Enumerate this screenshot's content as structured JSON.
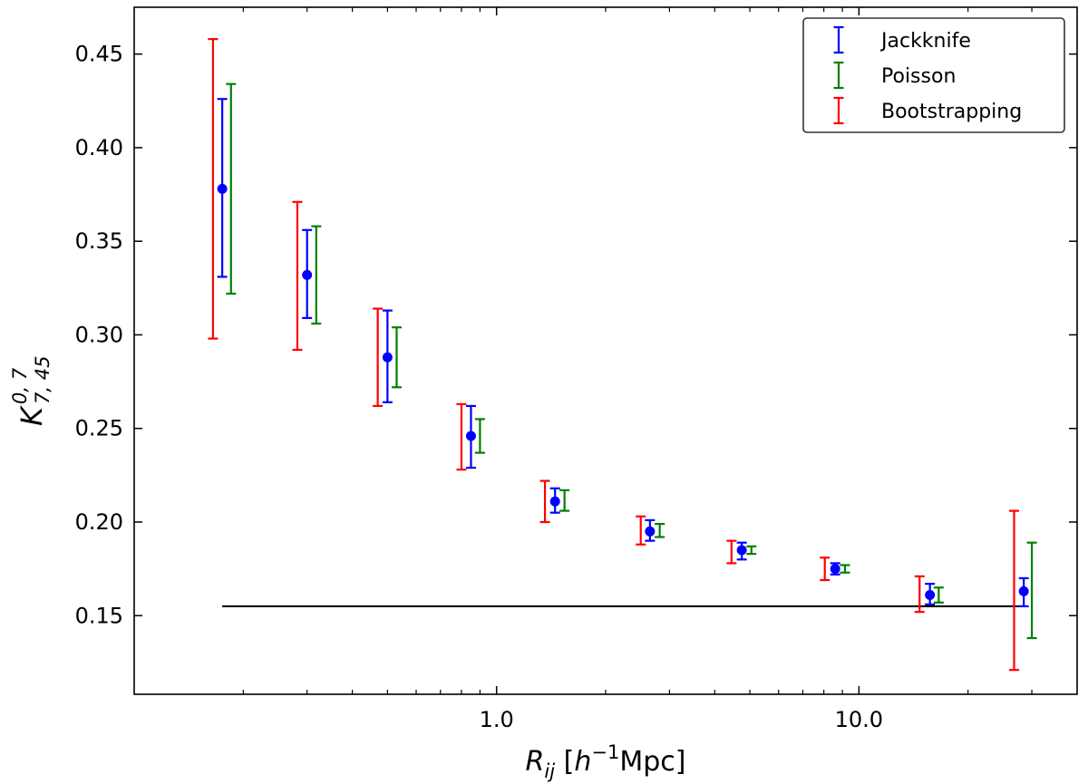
{
  "chart_data": {
    "type": "scatter",
    "xscale": "log",
    "xlim": [
      0.1,
      40
    ],
    "ylim": [
      0.108,
      0.475
    ],
    "xticks": [
      1.0,
      10.0
    ],
    "xtick_labels": [
      "1.0",
      "10.0"
    ],
    "yticks": [
      0.15,
      0.2,
      0.25,
      0.3,
      0.35,
      0.4,
      0.45
    ],
    "ytick_labels": [
      "0.15",
      "0.20",
      "0.25",
      "0.30",
      "0.35",
      "0.40",
      "0.45"
    ],
    "xlabel": {
      "main": "R",
      "sub": "ij",
      "open": " [",
      "h": "h",
      "exp": "−1",
      "unit": "Mpc]"
    },
    "ylabel": {
      "main": "K",
      "sub": "7, 45",
      "sup": "0, 7"
    },
    "series": [
      {
        "name": "Jackknife",
        "color": "#0000ff",
        "marker": true,
        "x": [
          0.175,
          0.3,
          0.5,
          0.85,
          1.45,
          2.65,
          4.75,
          8.6,
          15.7,
          28.5
        ],
        "y": [
          0.378,
          0.332,
          0.288,
          0.246,
          0.211,
          0.195,
          0.185,
          0.175,
          0.161,
          0.163
        ],
        "err_low": [
          0.331,
          0.309,
          0.264,
          0.229,
          0.205,
          0.19,
          0.18,
          0.172,
          0.156,
          0.155
        ],
        "err_high": [
          0.426,
          0.356,
          0.313,
          0.262,
          0.218,
          0.201,
          0.189,
          0.178,
          0.167,
          0.17
        ]
      },
      {
        "name": "Poisson",
        "color": "#008000",
        "marker": false,
        "x": [
          0.185,
          0.318,
          0.53,
          0.9,
          1.54,
          2.82,
          5.05,
          9.15,
          16.6,
          30.0
        ],
        "y": [
          0.378,
          0.332,
          0.288,
          0.246,
          0.211,
          0.195,
          0.185,
          0.175,
          0.161,
          0.163
        ],
        "err_low": [
          0.322,
          0.306,
          0.272,
          0.237,
          0.206,
          0.192,
          0.183,
          0.173,
          0.157,
          0.138
        ],
        "err_high": [
          0.434,
          0.358,
          0.304,
          0.255,
          0.217,
          0.199,
          0.187,
          0.177,
          0.165,
          0.189
        ]
      },
      {
        "name": "Bootstrapping",
        "color": "#ff0000",
        "marker": false,
        "x": [
          0.165,
          0.282,
          0.47,
          0.8,
          1.36,
          2.5,
          4.45,
          8.05,
          14.7,
          26.8
        ],
        "y": [
          0.378,
          0.332,
          0.288,
          0.246,
          0.211,
          0.195,
          0.185,
          0.175,
          0.161,
          0.163
        ],
        "err_low": [
          0.298,
          0.292,
          0.262,
          0.228,
          0.2,
          0.188,
          0.178,
          0.169,
          0.152,
          0.121
        ],
        "err_high": [
          0.458,
          0.371,
          0.314,
          0.263,
          0.222,
          0.203,
          0.19,
          0.181,
          0.171,
          0.206
        ]
      }
    ],
    "hline": {
      "y": 0.155,
      "x_from": 0.175,
      "x_to": 28.5,
      "color": "#000000"
    },
    "legend": {
      "position": "top-right",
      "entries": [
        "Jackknife",
        "Poisson",
        "Bootstrapping"
      ]
    }
  }
}
